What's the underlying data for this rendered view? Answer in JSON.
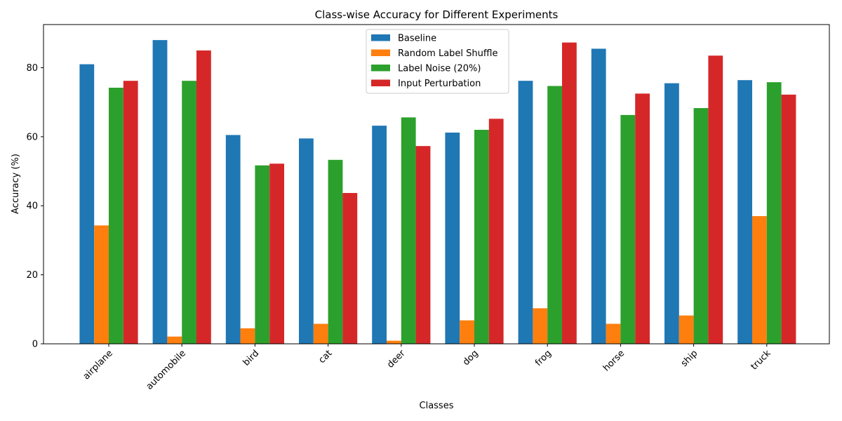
{
  "chart_data": {
    "type": "bar",
    "title": "Class-wise Accuracy for Different Experiments",
    "xlabel": "Classes",
    "ylabel": "Accuracy (%)",
    "ylim": [
      0,
      92.5
    ],
    "yticks": [
      0,
      20,
      40,
      60,
      80
    ],
    "categories": [
      "airplane",
      "automobile",
      "bird",
      "cat",
      "deer",
      "dog",
      "frog",
      "horse",
      "ship",
      "truck"
    ],
    "series": [
      {
        "name": "Baseline",
        "color": "#1f77b4",
        "values": [
          81.0,
          88.0,
          60.5,
          59.5,
          63.2,
          61.2,
          76.2,
          85.5,
          75.5,
          76.4
        ]
      },
      {
        "name": "Random Label Shuffle",
        "color": "#ff7f0e",
        "values": [
          34.3,
          2.1,
          4.5,
          5.8,
          0.9,
          6.8,
          10.3,
          5.8,
          8.2,
          37.0
        ]
      },
      {
        "name": "Label Noise (20%)",
        "color": "#2ca02c",
        "values": [
          74.2,
          76.2,
          51.7,
          53.3,
          65.6,
          62.0,
          74.7,
          66.3,
          68.3,
          75.8
        ]
      },
      {
        "name": "Input Perturbation",
        "color": "#d62728",
        "values": [
          76.2,
          85.0,
          52.2,
          43.7,
          57.3,
          65.2,
          87.3,
          72.5,
          83.5,
          72.2
        ]
      }
    ],
    "legend_position": "top-center",
    "grid": false
  }
}
